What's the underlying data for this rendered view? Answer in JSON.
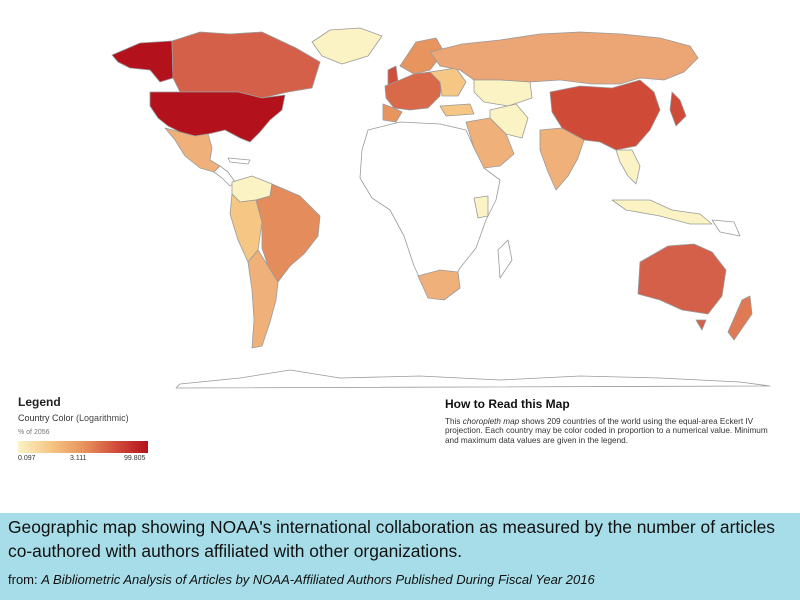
{
  "legend": {
    "title": "Legend",
    "subtitle": "Country Color",
    "scale_note": "(Logarithmic)",
    "unit": "% of 2056",
    "min_label": "0.097",
    "mid_label": "3.111",
    "max_label": "99.805",
    "colors": [
      "#fbf3c4",
      "#f6c684",
      "#e8945e",
      "#d24e3c",
      "#b3111b"
    ]
  },
  "how_to": {
    "title": "How to Read this Map",
    "text_before": "This ",
    "text_italic": "choropleth map",
    "text_after": " shows 209 countries of the world using the equal-area Eckert IV projection. Each country may be color coded in proportion to a numerical value. Minimum and maximum data values are given in the legend."
  },
  "caption": {
    "text": "Geographic map showing NOAA's international collaboration as measured by the number of articles co-authored with authors affiliated with other organizations.",
    "source_prefix": "from: ",
    "source_title": "A Bibliometric Analysis of Articles by NOAA-Affiliated Authors Published During Fiscal Year 2016"
  },
  "map": {
    "projection": "Eckert IV",
    "countries": [
      {
        "name": "United States",
        "color": "#b3111b"
      },
      {
        "name": "Alaska",
        "color": "#b3111b"
      },
      {
        "name": "Canada",
        "color": "#d4604a"
      },
      {
        "name": "Mexico",
        "color": "#f0b07a"
      },
      {
        "name": "Greenland",
        "color": "#fbf3c4"
      },
      {
        "name": "Brazil",
        "color": "#e48c5c"
      },
      {
        "name": "Chile-Argentina",
        "color": "#f0b07a"
      },
      {
        "name": "Russia",
        "color": "#eca574"
      },
      {
        "name": "China",
        "color": "#d04a38"
      },
      {
        "name": "India",
        "color": "#f0b07a"
      },
      {
        "name": "Australia",
        "color": "#d4604a"
      },
      {
        "name": "Europe",
        "color": "#e07a55"
      },
      {
        "name": "Arabia",
        "color": "#f0b07a"
      },
      {
        "name": "Kazakhstan",
        "color": "#fbf3c4"
      },
      {
        "name": "South Africa",
        "color": "#f0b07a"
      },
      {
        "name": "Japan",
        "color": "#d04a38"
      },
      {
        "name": "New Zealand",
        "color": "#e07a55"
      },
      {
        "name": "Indonesia",
        "color": "#fbf3c4"
      },
      {
        "name": "Africa",
        "color": "#ffffff"
      }
    ]
  }
}
